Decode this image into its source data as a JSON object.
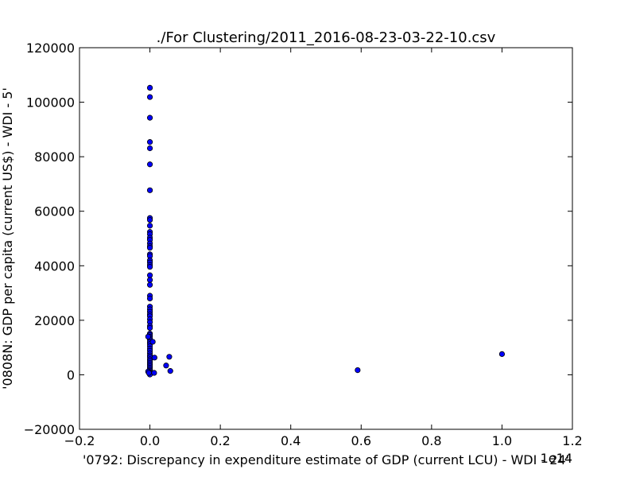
{
  "chart_data": {
    "type": "scatter",
    "title": "./For Clustering/2011_2016-08-23-03-22-10.csv",
    "xlabel": "'0792: Discrepancy in expenditure estimate of GDP  (current LCU) - WDI - 24'",
    "ylabel": "'0808N: GDP per capita  (current US$) - WDI - 5'",
    "x_offset_label": "1e14",
    "xlim": [
      -0.2,
      1.2
    ],
    "ylim": [
      -20000,
      120000
    ],
    "x_ticks": [
      -0.2,
      0.0,
      0.2,
      0.4,
      0.6,
      0.8,
      1.0,
      1.2
    ],
    "x_tick_labels": [
      "−0.2",
      "0.0",
      "0.2",
      "0.4",
      "0.6",
      "0.8",
      "1.0",
      "1.2"
    ],
    "y_ticks": [
      -20000,
      0,
      20000,
      40000,
      60000,
      80000,
      100000,
      120000
    ],
    "y_tick_labels": [
      "−20000",
      "0",
      "20000",
      "40000",
      "60000",
      "80000",
      "100000",
      "120000"
    ],
    "grid": false,
    "legend": "none",
    "marker_color": "#0000ff",
    "marker_edge_color": "#000000",
    "points": [
      [
        0.0,
        105300
      ],
      [
        0.0,
        101900
      ],
      [
        0.0,
        94300
      ],
      [
        0.0,
        85400
      ],
      [
        0.0,
        83100
      ],
      [
        0.0,
        77200
      ],
      [
        0.0,
        67700
      ],
      [
        0.0,
        57500
      ],
      [
        0.0,
        56800
      ],
      [
        0.0,
        54700
      ],
      [
        0.0,
        52400
      ],
      [
        0.0,
        51600
      ],
      [
        0.0,
        50300
      ],
      [
        0.0,
        49500
      ],
      [
        0.0,
        48200
      ],
      [
        0.0,
        47200
      ],
      [
        0.0,
        46600
      ],
      [
        0.0,
        44200
      ],
      [
        0.0,
        43600
      ],
      [
        0.0,
        42000
      ],
      [
        0.0,
        41200
      ],
      [
        0.0,
        40300
      ],
      [
        0.0,
        39600
      ],
      [
        0.0,
        36500
      ],
      [
        0.0,
        34800
      ],
      [
        0.0,
        33000
      ],
      [
        0.0,
        29000
      ],
      [
        0.0,
        28000
      ],
      [
        0.0,
        25000
      ],
      [
        0.0,
        24000
      ],
      [
        0.0,
        23100
      ],
      [
        0.0,
        22200
      ],
      [
        0.0,
        21500
      ],
      [
        0.0,
        20400
      ],
      [
        0.0,
        19300
      ],
      [
        0.0,
        17900
      ],
      [
        0.0,
        17200
      ],
      [
        0.0,
        15100
      ],
      [
        0.0,
        14600
      ],
      [
        0.0,
        14000
      ],
      [
        0.0,
        13400
      ],
      [
        0.0,
        12800
      ],
      [
        0.0,
        12000
      ],
      [
        0.0,
        11300
      ],
      [
        0.0,
        10500
      ],
      [
        0.0,
        9600
      ],
      [
        0.0,
        8800
      ],
      [
        0.0,
        7900
      ],
      [
        0.0,
        7100
      ],
      [
        0.0,
        6500
      ],
      [
        0.0,
        5700
      ],
      [
        0.0,
        5100
      ],
      [
        0.0,
        4400
      ],
      [
        0.0,
        3800
      ],
      [
        0.0,
        3200
      ],
      [
        0.0,
        2600
      ],
      [
        0.0,
        2000
      ],
      [
        0.0,
        1500
      ],
      [
        0.0,
        1000
      ],
      [
        0.0,
        600
      ],
      [
        0.0,
        300
      ],
      [
        0.0,
        100
      ],
      [
        -0.005,
        14000
      ],
      [
        -0.005,
        1200
      ],
      [
        -0.003,
        700
      ],
      [
        0.008,
        12100
      ],
      [
        0.013,
        6300
      ],
      [
        0.012,
        700
      ],
      [
        0.046,
        3400
      ],
      [
        0.055,
        6600
      ],
      [
        0.058,
        1400
      ],
      [
        0.59,
        1700
      ],
      [
        1.0,
        7600
      ]
    ]
  }
}
